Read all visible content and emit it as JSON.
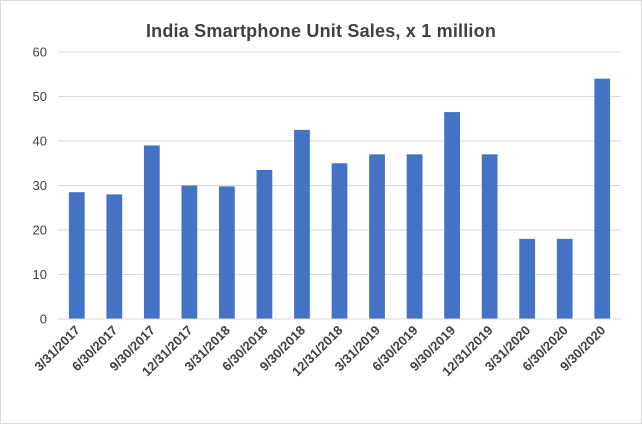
{
  "chart_data": {
    "type": "bar",
    "title": "India Smartphone  Unit Sales, x 1 million",
    "xlabel": "",
    "ylabel": "",
    "categories": [
      "3/31/2017",
      "6/30/2017",
      "9/30/2017",
      "12/31/2017",
      "3/31/2018",
      "6/30/2018",
      "9/30/2018",
      "12/31/2018",
      "3/31/2019",
      "6/30/2019",
      "9/30/2019",
      "12/31/2019",
      "3/31/2020",
      "6/30/2020",
      "9/30/2020"
    ],
    "values": [
      28.5,
      28,
      39,
      30,
      29.8,
      33.5,
      42.5,
      35,
      37,
      37,
      46.5,
      37,
      18,
      18,
      54
    ],
    "ylim": [
      0,
      60
    ],
    "yticks": [
      0,
      10,
      20,
      30,
      40,
      50,
      60
    ],
    "grid": true,
    "legend": "none",
    "bar_color": "#4472c4",
    "grid_color": "#d9d9d9"
  }
}
